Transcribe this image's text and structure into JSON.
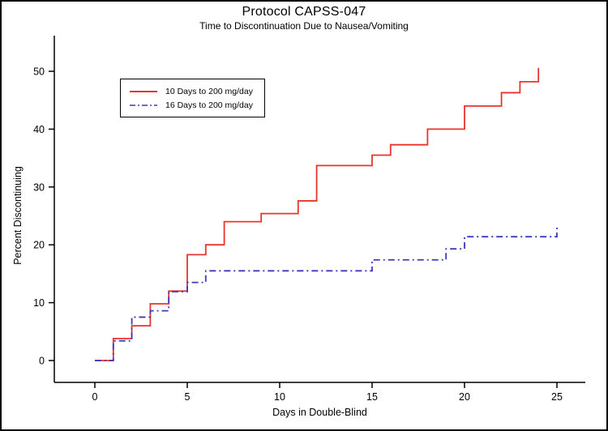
{
  "chart_data": {
    "type": "line",
    "subtype": "step",
    "title": "Protocol CAPSS-047",
    "subtitle": "Time to Discontinuation Due to Nausea/Vomiting",
    "xlabel": "Days in Double-Blind",
    "ylabel": "Percent Discontinuing",
    "xlim": [
      0,
      25
    ],
    "ylim": [
      0,
      50
    ],
    "x_ticks": [
      0,
      5,
      10,
      15,
      20,
      25
    ],
    "y_ticks": [
      0,
      10,
      20,
      30,
      40,
      50
    ],
    "grid": false,
    "legend_position": "upper-left-inside",
    "series": [
      {
        "name": "10 Days to 200 mg/day",
        "color": "#e8332e",
        "line_style": "solid",
        "points": [
          [
            0,
            0
          ],
          [
            1,
            3.8
          ],
          [
            2,
            6
          ],
          [
            3,
            9.8
          ],
          [
            4,
            12
          ],
          [
            5,
            18.3
          ],
          [
            6,
            20
          ],
          [
            7,
            24
          ],
          [
            9,
            25.4
          ],
          [
            11,
            27.6
          ],
          [
            12,
            33.7
          ],
          [
            15,
            35.5
          ],
          [
            16,
            37.3
          ],
          [
            18,
            40
          ],
          [
            20,
            44
          ],
          [
            22,
            46.3
          ],
          [
            23,
            48.2
          ],
          [
            24,
            50.6
          ]
        ]
      },
      {
        "name": "16 Days to 200 mg/day",
        "color": "#3a3ac0",
        "line_style": "dash-dot",
        "points": [
          [
            0,
            0
          ],
          [
            1,
            3.4
          ],
          [
            2,
            7.5
          ],
          [
            3,
            8.6
          ],
          [
            4,
            11.9
          ],
          [
            5,
            13.5
          ],
          [
            6,
            15.5
          ],
          [
            15,
            17.4
          ],
          [
            19,
            19.3
          ],
          [
            20,
            21.4
          ],
          [
            25,
            23
          ]
        ]
      }
    ]
  }
}
